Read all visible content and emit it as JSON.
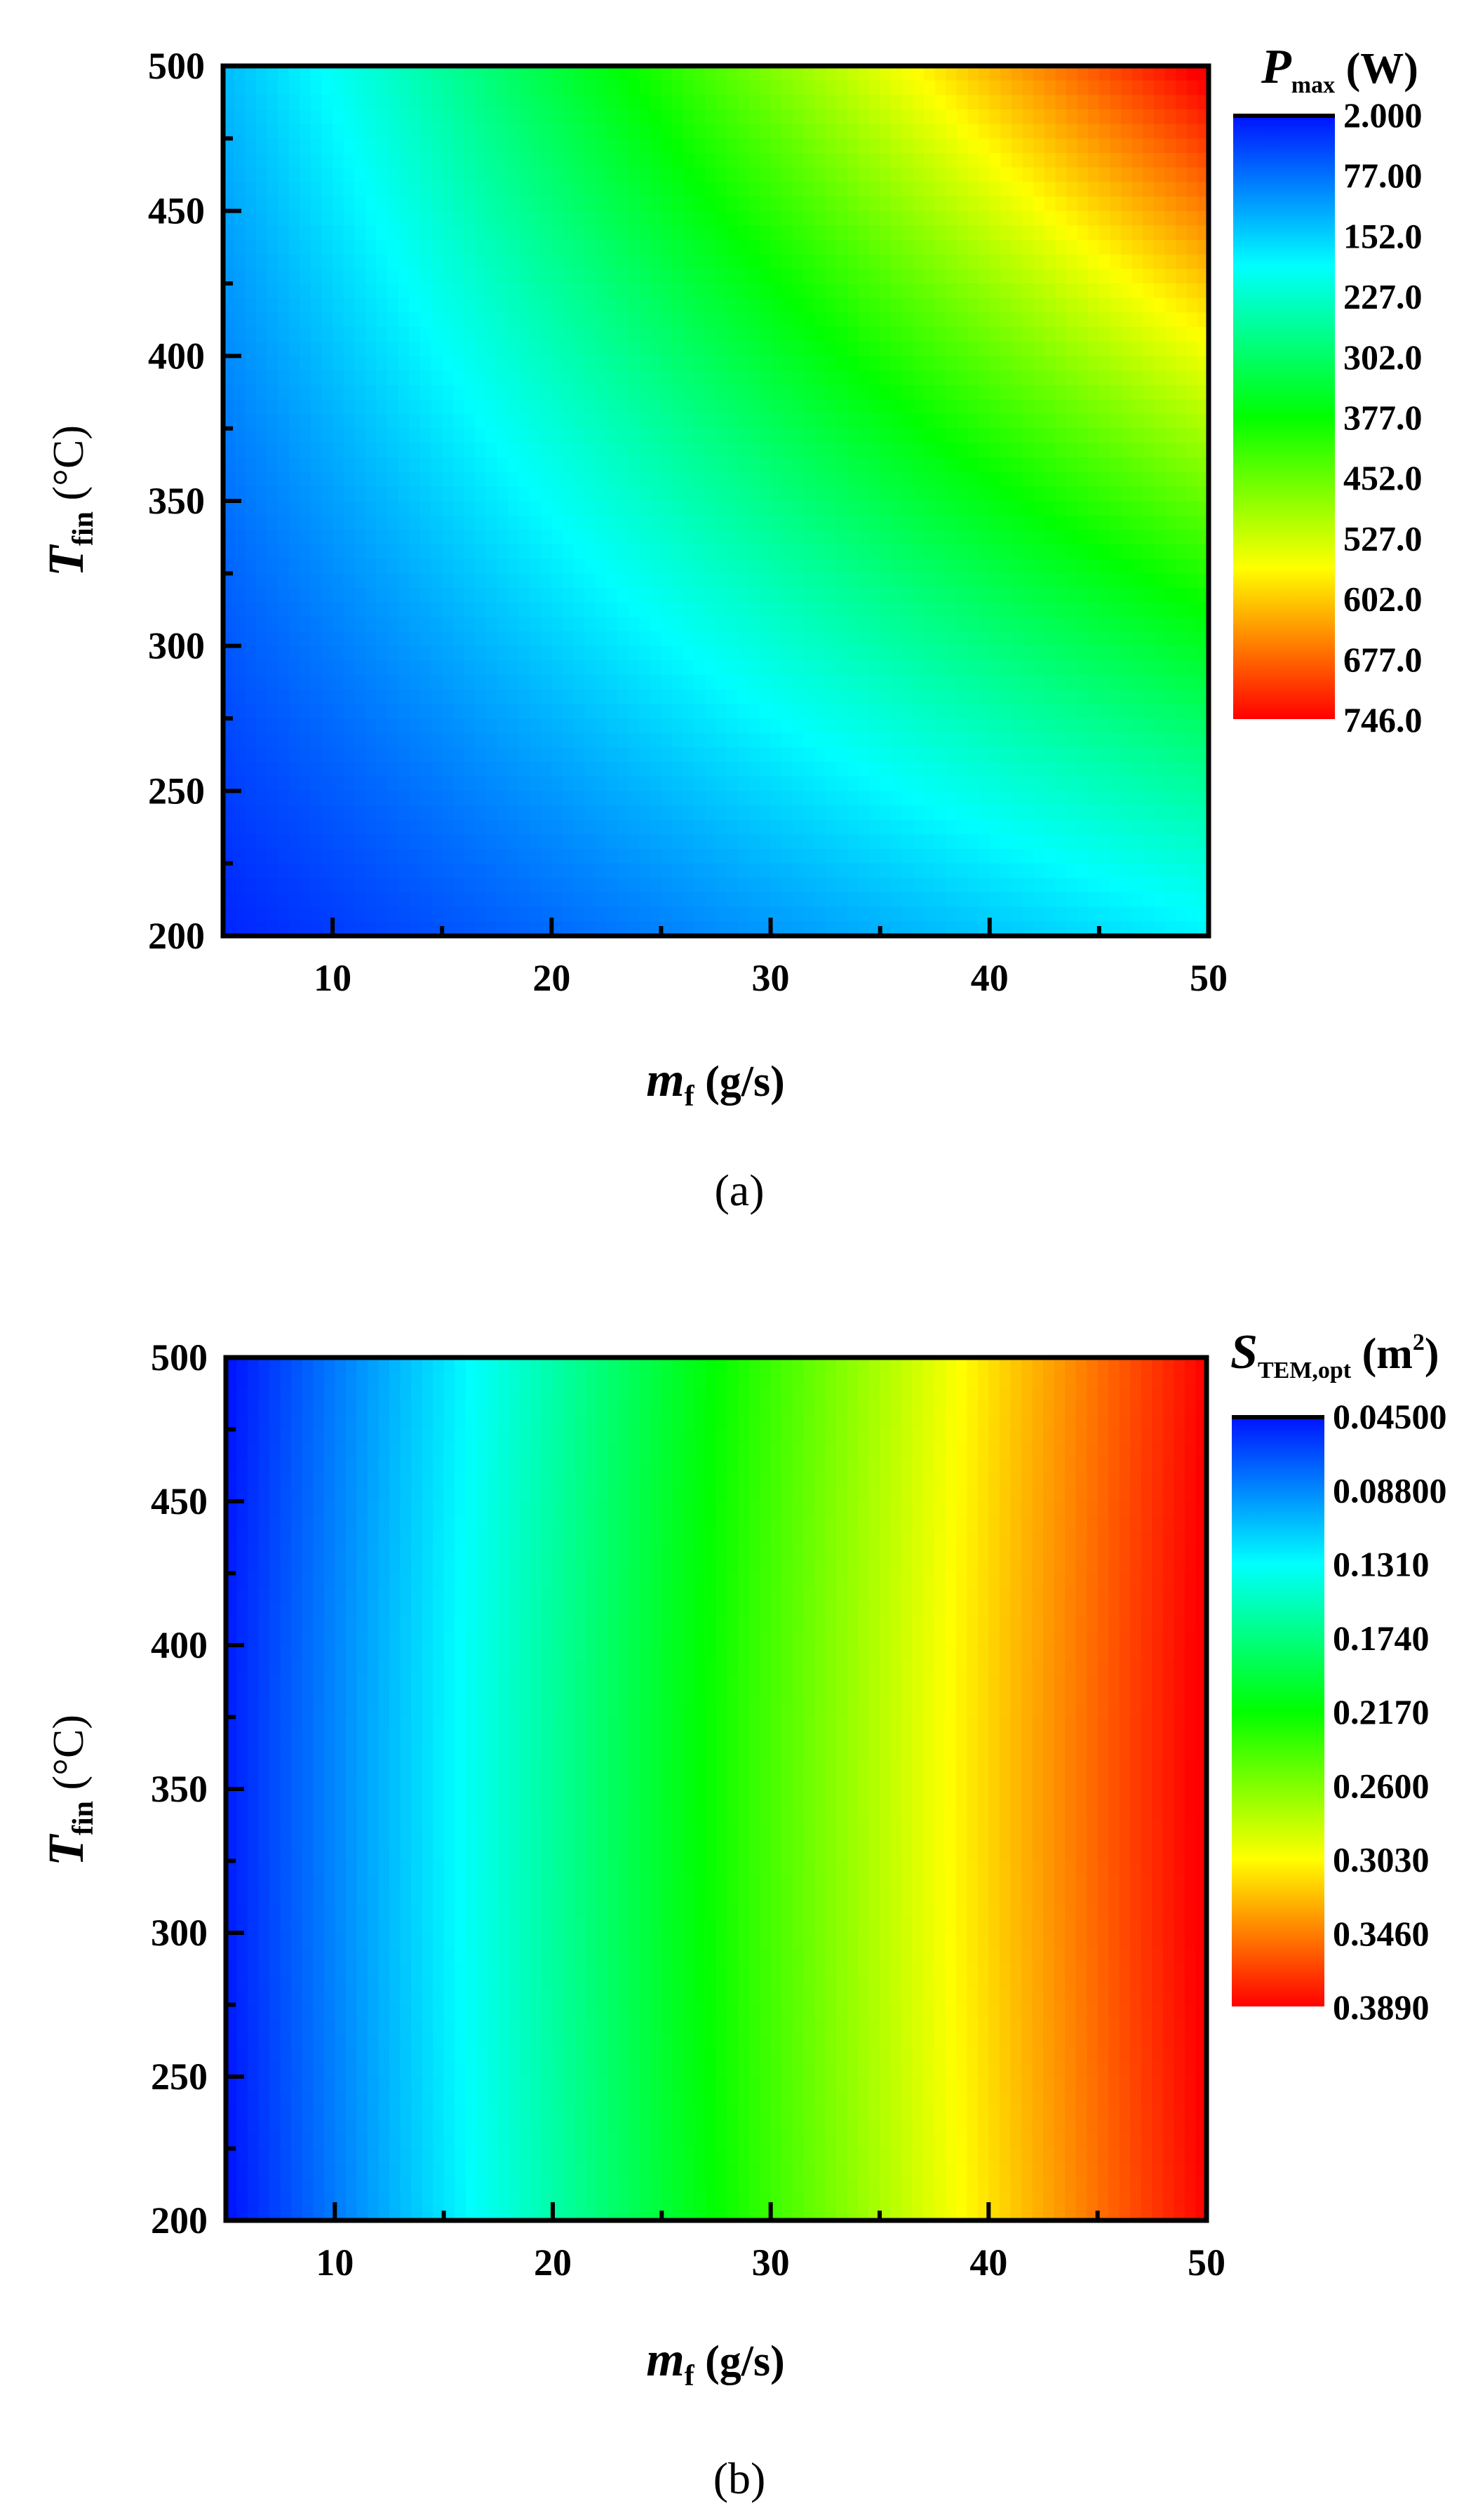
{
  "chart_data": [
    {
      "type": "heatmap",
      "panel_label": "(a)",
      "xlabel": {
        "main": "m",
        "sub": "f",
        "unit": " (g/s)"
      },
      "ylabel": {
        "main": "T",
        "sub": "fin",
        "unit": " (°C)"
      },
      "xlim": [
        5,
        50
      ],
      "ylim": [
        200,
        500
      ],
      "x_ticks": [
        "10",
        "20",
        "30",
        "40",
        "50"
      ],
      "y_ticks": [
        "200",
        "250",
        "300",
        "350",
        "400",
        "450",
        "500"
      ],
      "colorbar": {
        "title": {
          "main": "P",
          "sub": "max",
          "unit": " (W)"
        },
        "labels": [
          "2.000",
          "77.00",
          "152.0",
          "227.0",
          "302.0",
          "377.0",
          "452.0",
          "527.0",
          "602.0",
          "677.0",
          "746.0"
        ],
        "range": [
          2,
          746
        ]
      },
      "grid": false,
      "samples": [
        {
          "x": 5,
          "y": 200,
          "z": 10
        },
        {
          "x": 20,
          "y": 200,
          "z": 70
        },
        {
          "x": 50,
          "y": 200,
          "z": 200
        },
        {
          "x": 10,
          "y": 500,
          "z": 150
        },
        {
          "x": 25,
          "y": 500,
          "z": 380
        },
        {
          "x": 35,
          "y": 500,
          "z": 510
        },
        {
          "x": 50,
          "y": 500,
          "z": 746
        },
        {
          "x": 20,
          "y": 380,
          "z": 170
        },
        {
          "x": 40,
          "y": 300,
          "z": 250
        },
        {
          "x": 50,
          "y": 400,
          "z": 400
        }
      ]
    },
    {
      "type": "heatmap",
      "panel_label": "(b)",
      "xlabel": {
        "main": "m",
        "sub": "f",
        "unit": " (g/s)"
      },
      "ylabel": {
        "main": "T",
        "sub": "fin",
        "unit": " (°C)"
      },
      "xlim": [
        5,
        50
      ],
      "ylim": [
        200,
        500
      ],
      "x_ticks": [
        "10",
        "20",
        "30",
        "40",
        "50"
      ],
      "y_ticks": [
        "200",
        "250",
        "300",
        "350",
        "400",
        "450",
        "500"
      ],
      "colorbar": {
        "title": {
          "main": "S",
          "sub": "TEM,opt",
          "unit": " (m",
          "sup": "2",
          "close": ")"
        },
        "labels": [
          "0.04500",
          "0.08800",
          "0.1310",
          "0.1740",
          "0.2170",
          "0.2600",
          "0.3030",
          "0.3460",
          "0.3890"
        ],
        "range": [
          0.045,
          0.389
        ]
      },
      "grid": false,
      "samples": [
        {
          "x": 5,
          "z": 0.045
        },
        {
          "x": 15,
          "z": 0.131
        },
        {
          "x": 25,
          "z": 0.217
        },
        {
          "x": 35,
          "z": 0.303
        },
        {
          "x": 50,
          "z": 0.389
        }
      ]
    }
  ]
}
